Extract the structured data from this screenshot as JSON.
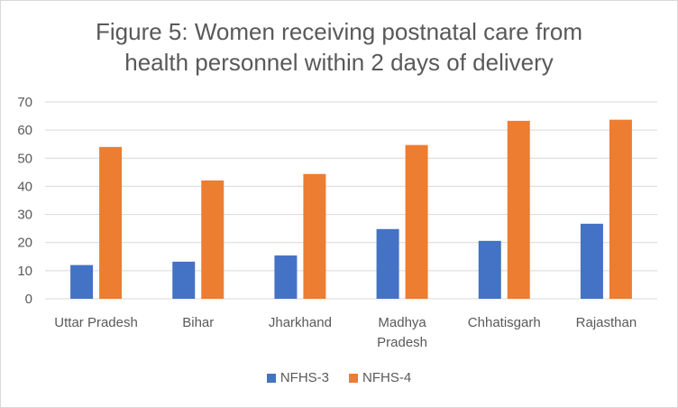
{
  "chart_data": {
    "type": "bar",
    "title_lines": [
      "Figure 5: Women receiving postnatal care from",
      "health personnel  within 2 days of delivery"
    ],
    "categories": [
      [
        "Uttar Pradesh"
      ],
      [
        "Bihar"
      ],
      [
        "Jharkhand"
      ],
      [
        "Madhya",
        "Pradesh"
      ],
      [
        "Chhatisgarh"
      ],
      [
        "Rajasthan"
      ]
    ],
    "series": [
      {
        "name": "NFHS-3",
        "color": "#4472c4",
        "values": [
          12.0,
          13.2,
          15.4,
          24.8,
          20.6,
          26.7
        ]
      },
      {
        "name": "NFHS-4",
        "color": "#ed7d31",
        "values": [
          54.0,
          42.1,
          44.4,
          54.7,
          63.3,
          63.7
        ]
      }
    ],
    "ylim": [
      0,
      70
    ],
    "yticks": [
      "0",
      "10",
      "20",
      "30",
      "40",
      "50",
      "60",
      "70"
    ],
    "grid": true,
    "legend_position": "bottom",
    "xlabel": "",
    "ylabel": ""
  }
}
